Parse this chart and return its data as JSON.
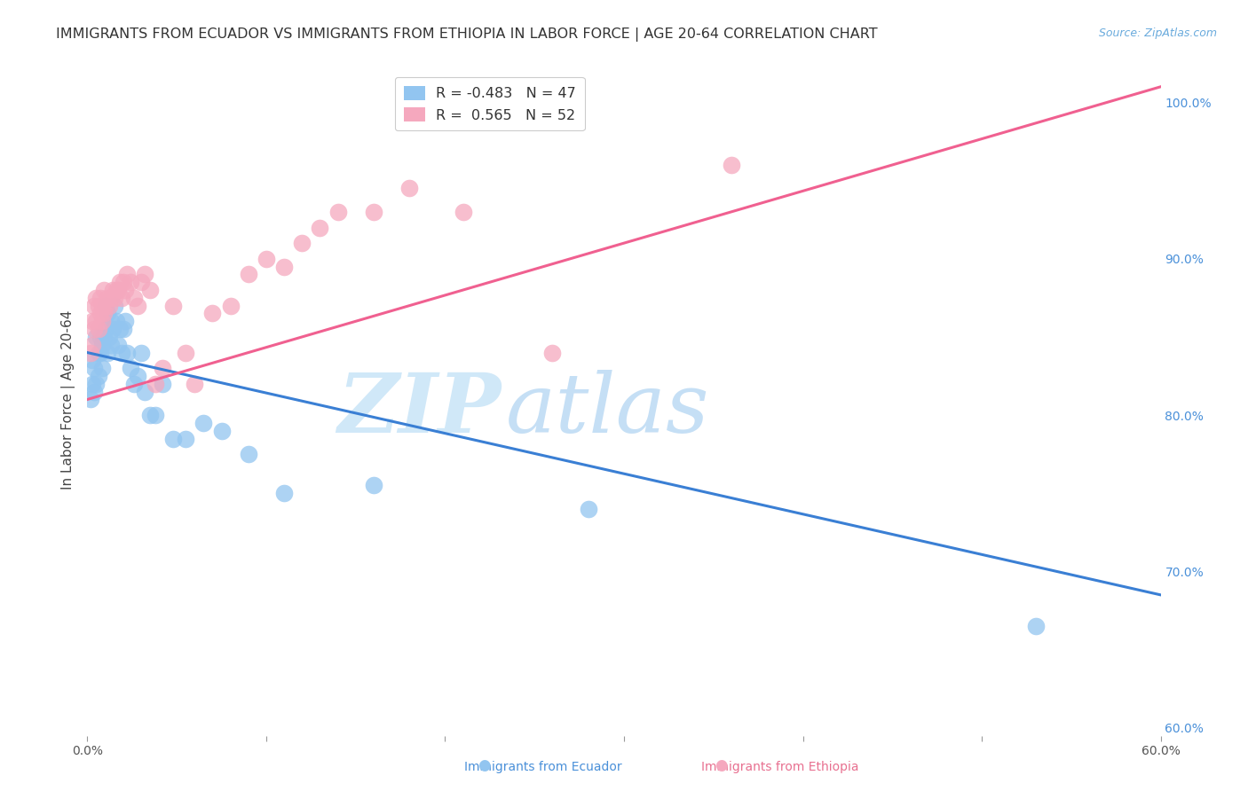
{
  "title": "IMMIGRANTS FROM ECUADOR VS IMMIGRANTS FROM ETHIOPIA IN LABOR FORCE | AGE 20-64 CORRELATION CHART",
  "source": "Source: ZipAtlas.com",
  "ylabel": "In Labor Force | Age 20-64",
  "xlim": [
    0.0,
    0.6
  ],
  "ylim": [
    0.595,
    1.025
  ],
  "xticks": [
    0.0,
    0.1,
    0.2,
    0.3,
    0.4,
    0.5,
    0.6
  ],
  "xticklabels": [
    "0.0%",
    "",
    "",
    "",
    "",
    "",
    "60.0%"
  ],
  "yticks_right": [
    0.6,
    0.7,
    0.8,
    0.9,
    1.0
  ],
  "yticklabels_right": [
    "60.0%",
    "70.0%",
    "80.0%",
    "90.0%",
    "100.0%"
  ],
  "ecuador_color": "#92C5F0",
  "ethiopia_color": "#F5A8BE",
  "ecuador_line_color": "#3a7fd4",
  "ethiopia_line_color": "#f06090",
  "ecuador_R": -0.483,
  "ecuador_N": 47,
  "ethiopia_R": 0.565,
  "ethiopia_N": 52,
  "ecuador_x": [
    0.002,
    0.003,
    0.003,
    0.004,
    0.004,
    0.005,
    0.005,
    0.006,
    0.006,
    0.007,
    0.007,
    0.008,
    0.008,
    0.009,
    0.01,
    0.01,
    0.011,
    0.011,
    0.012,
    0.013,
    0.013,
    0.014,
    0.015,
    0.016,
    0.017,
    0.018,
    0.019,
    0.02,
    0.021,
    0.022,
    0.024,
    0.026,
    0.028,
    0.03,
    0.032,
    0.035,
    0.038,
    0.042,
    0.048,
    0.055,
    0.065,
    0.075,
    0.09,
    0.11,
    0.16,
    0.28,
    0.53
  ],
  "ecuador_y": [
    0.81,
    0.82,
    0.835,
    0.83,
    0.815,
    0.82,
    0.85,
    0.84,
    0.825,
    0.85,
    0.84,
    0.845,
    0.83,
    0.85,
    0.87,
    0.855,
    0.865,
    0.84,
    0.85,
    0.845,
    0.86,
    0.855,
    0.87,
    0.86,
    0.845,
    0.855,
    0.84,
    0.855,
    0.86,
    0.84,
    0.83,
    0.82,
    0.825,
    0.84,
    0.815,
    0.8,
    0.8,
    0.82,
    0.785,
    0.785,
    0.795,
    0.79,
    0.775,
    0.75,
    0.755,
    0.74,
    0.665
  ],
  "ethiopia_x": [
    0.002,
    0.003,
    0.003,
    0.004,
    0.004,
    0.005,
    0.005,
    0.006,
    0.006,
    0.007,
    0.007,
    0.008,
    0.008,
    0.009,
    0.009,
    0.01,
    0.011,
    0.012,
    0.013,
    0.014,
    0.015,
    0.016,
    0.017,
    0.018,
    0.019,
    0.02,
    0.021,
    0.022,
    0.024,
    0.026,
    0.028,
    0.03,
    0.032,
    0.035,
    0.038,
    0.042,
    0.048,
    0.055,
    0.06,
    0.07,
    0.08,
    0.09,
    0.1,
    0.11,
    0.12,
    0.13,
    0.14,
    0.16,
    0.18,
    0.21,
    0.26,
    0.36
  ],
  "ethiopia_y": [
    0.84,
    0.845,
    0.86,
    0.855,
    0.87,
    0.86,
    0.875,
    0.87,
    0.855,
    0.865,
    0.875,
    0.87,
    0.86,
    0.88,
    0.865,
    0.87,
    0.875,
    0.87,
    0.875,
    0.88,
    0.875,
    0.88,
    0.88,
    0.885,
    0.875,
    0.885,
    0.88,
    0.89,
    0.885,
    0.875,
    0.87,
    0.885,
    0.89,
    0.88,
    0.82,
    0.83,
    0.87,
    0.84,
    0.82,
    0.865,
    0.87,
    0.89,
    0.9,
    0.895,
    0.91,
    0.92,
    0.93,
    0.93,
    0.945,
    0.93,
    0.84,
    0.96
  ],
  "ecuador_trendline_x": [
    0.0,
    0.6
  ],
  "ecuador_trendline_y": [
    0.84,
    0.685
  ],
  "ethiopia_trendline_x": [
    0.0,
    0.6
  ],
  "ethiopia_trendline_y": [
    0.81,
    1.01
  ],
  "watermark_zip": "ZIP",
  "watermark_atlas": "atlas",
  "watermark_color_zip": "#d0e8f8",
  "watermark_color_atlas": "#c5dff5",
  "background_color": "#FFFFFF",
  "grid_color": "#DCDCDC",
  "title_fontsize": 11.5,
  "axis_label_fontsize": 11,
  "tick_fontsize": 10,
  "legend_fontsize": 11.5
}
